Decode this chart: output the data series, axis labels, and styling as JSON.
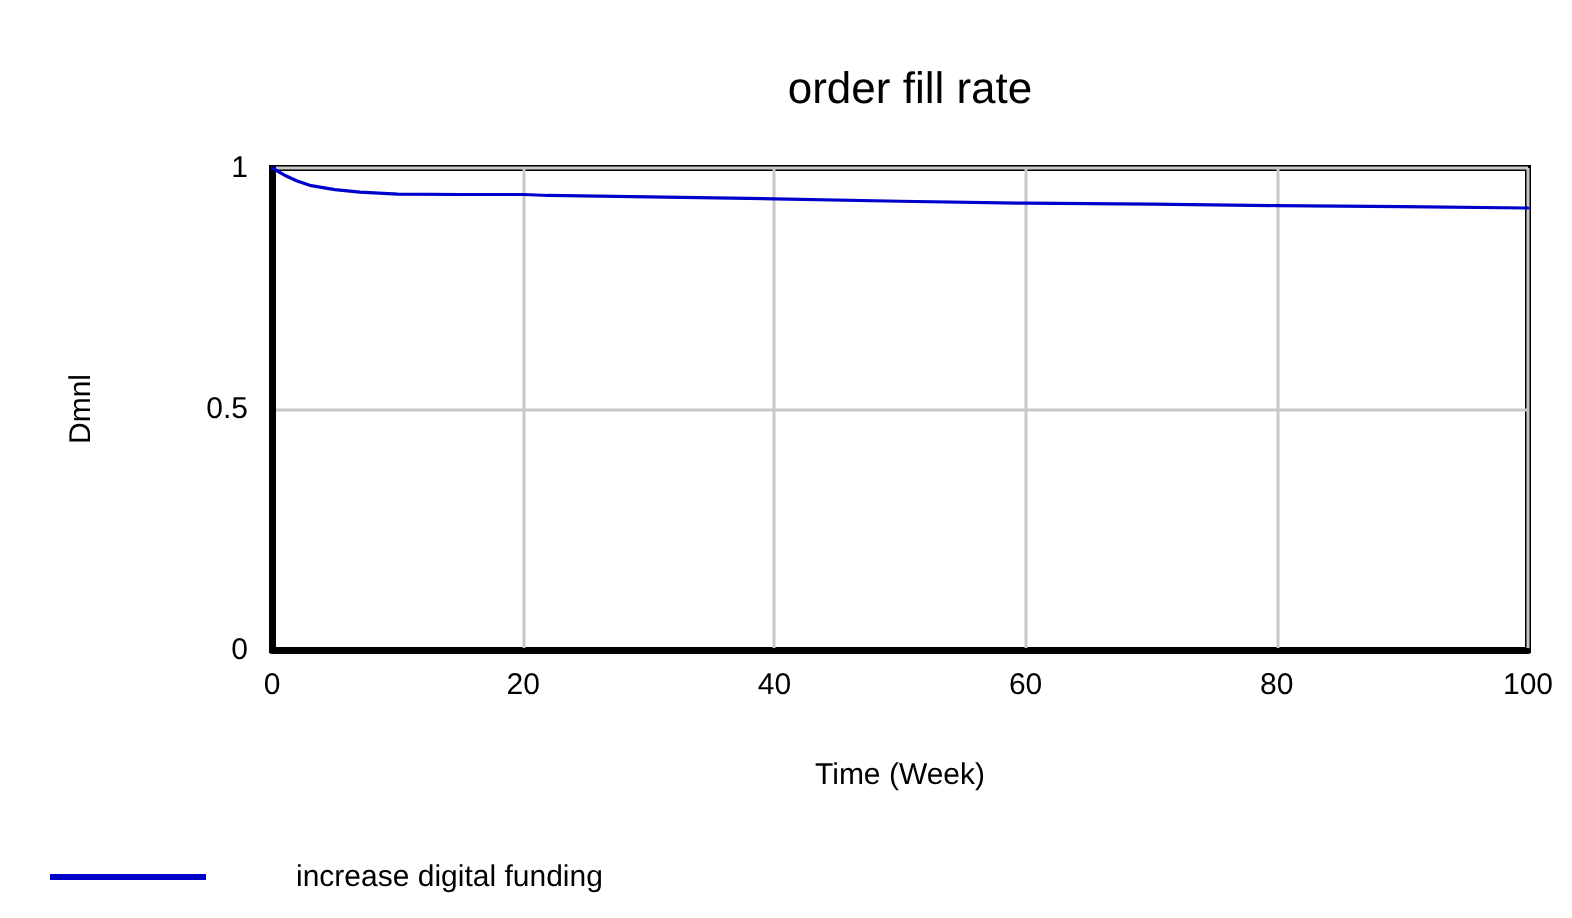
{
  "chart_data": {
    "type": "line",
    "title": "order fill rate",
    "xlabel": "Time (Week)",
    "ylabel": "Dmnl",
    "x": [
      0,
      1,
      2,
      3,
      5,
      7,
      10,
      15,
      20,
      22,
      30,
      40,
      50,
      60,
      70,
      80,
      90,
      100
    ],
    "series": [
      {
        "name": "increase digital funding",
        "color": "#0000cc",
        "values": [
          1,
          0.985,
          0.973,
          0.964,
          0.955,
          0.95,
          0.946,
          0.945,
          0.945,
          0.943,
          0.94,
          0.936,
          0.931,
          0.927,
          0.925,
          0.922,
          0.92,
          0.917
        ]
      }
    ],
    "xlim": [
      0,
      100
    ],
    "xticks": [
      0,
      20,
      40,
      60,
      80,
      100
    ],
    "ylim": [
      0,
      1
    ],
    "yticks": [
      0,
      0.5,
      1
    ],
    "grid": true,
    "legend": "bottom left",
    "marker": "none",
    "line_style": "solid"
  }
}
